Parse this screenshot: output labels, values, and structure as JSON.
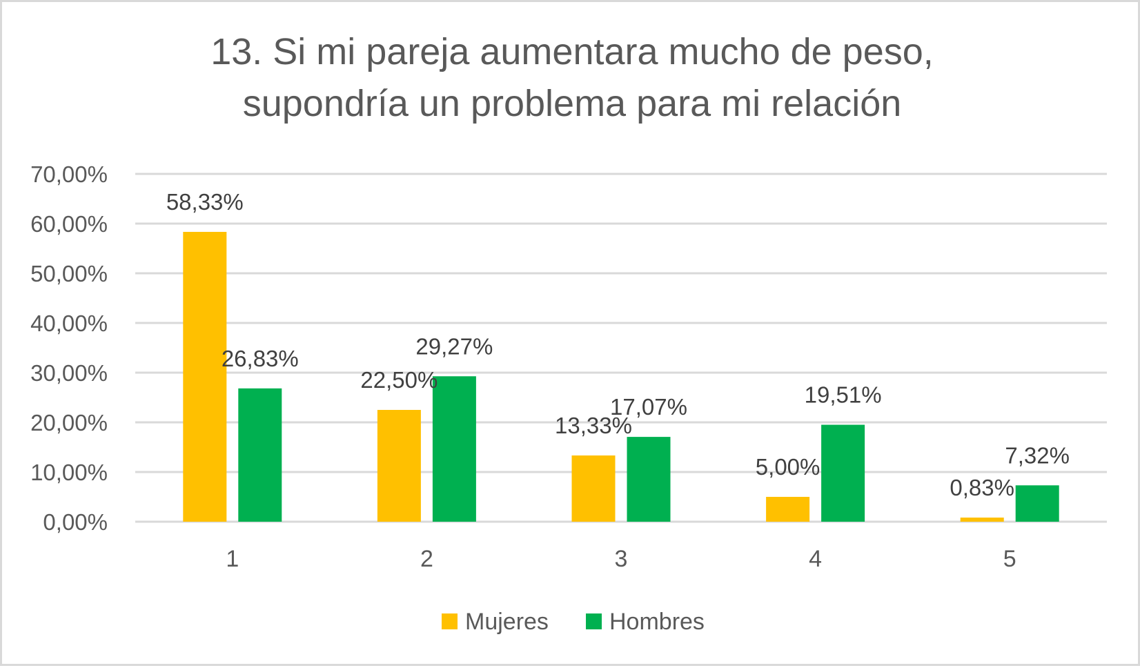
{
  "chart_data": {
    "type": "bar",
    "title": [
      "13. Si mi pareja aumentara mucho de peso,",
      "supondría un problema para mi relación"
    ],
    "xlabel": "",
    "ylabel": "",
    "categories": [
      "1",
      "2",
      "3",
      "4",
      "5"
    ],
    "series": [
      {
        "name": "Mujeres",
        "color": "#FFC000",
        "values": [
          58.33,
          22.5,
          13.33,
          5.0,
          0.83
        ],
        "labels": [
          "58,33%",
          "22,50%",
          "13,33%",
          "5,00%",
          "0,83%"
        ]
      },
      {
        "name": "Hombres",
        "color": "#00B050",
        "values": [
          26.83,
          29.27,
          17.07,
          19.51,
          7.32
        ],
        "labels": [
          "26,83%",
          "29,27%",
          "17,07%",
          "19,51%",
          "7,32%"
        ]
      }
    ],
    "ylim": [
      0,
      70
    ],
    "yticks": [
      0,
      10,
      20,
      30,
      40,
      50,
      60,
      70
    ],
    "ytick_labels": [
      "0,00%",
      "10,00%",
      "20,00%",
      "30,00%",
      "40,00%",
      "50,00%",
      "60,00%",
      "70,00%"
    ],
    "grid": true,
    "gridline_color": "#D9D9D9",
    "legend": {
      "position": "bottom",
      "entries": [
        "Mujeres",
        "Hombres"
      ]
    }
  }
}
